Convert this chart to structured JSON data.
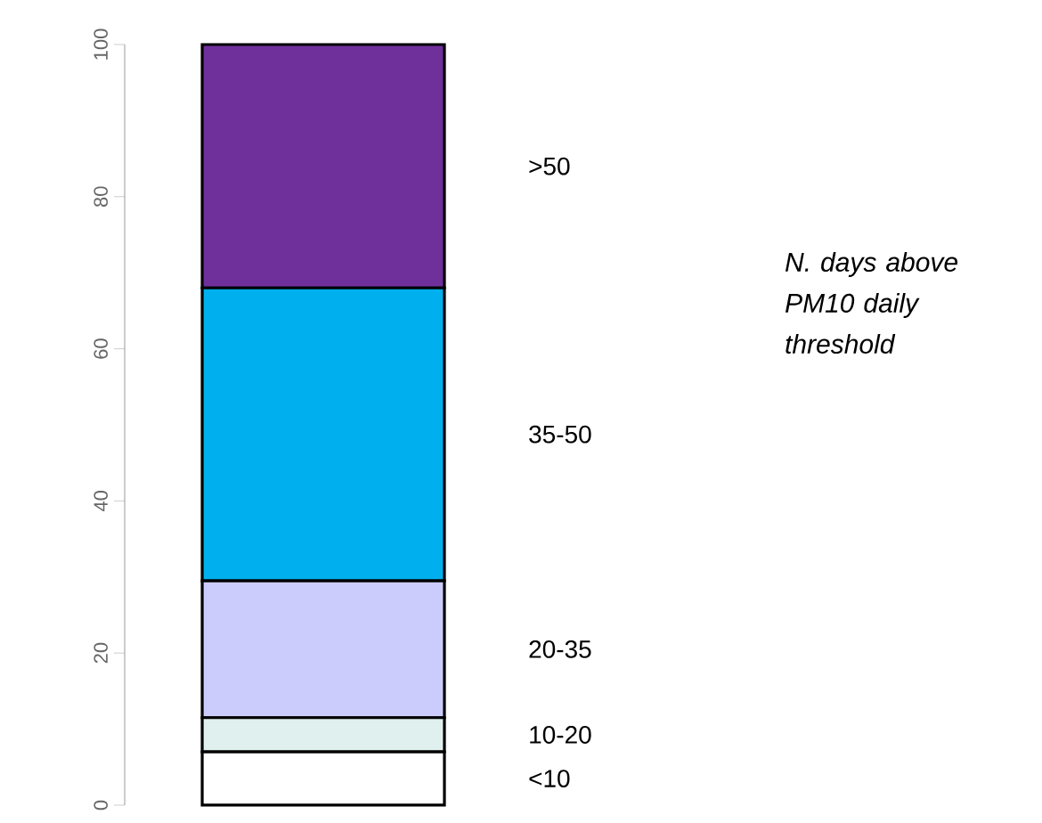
{
  "chart_data": {
    "type": "bar",
    "stacked": true,
    "categories": [
      null
    ],
    "legend_title": "*N. days above PM10 daily threshold*",
    "series": [
      {
        "name": "<10",
        "color": "#ffffff",
        "values": [
          7
        ]
      },
      {
        "name": "10-20",
        "color": "#dff0ef",
        "values": [
          4.5
        ]
      },
      {
        "name": "20-35",
        "color": "#ccccfc",
        "values": [
          18
        ]
      },
      {
        "name": "35-50",
        "color": "#00b0ee",
        "values": [
          38.5
        ]
      },
      {
        "name": ">50",
        "color": "#70309c",
        "values": [
          32
        ]
      }
    ],
    "ylim": [
      0,
      100
    ],
    "yticks": [
      0,
      20,
      40,
      60,
      80,
      100
    ],
    "tick_labels": "y"
  }
}
